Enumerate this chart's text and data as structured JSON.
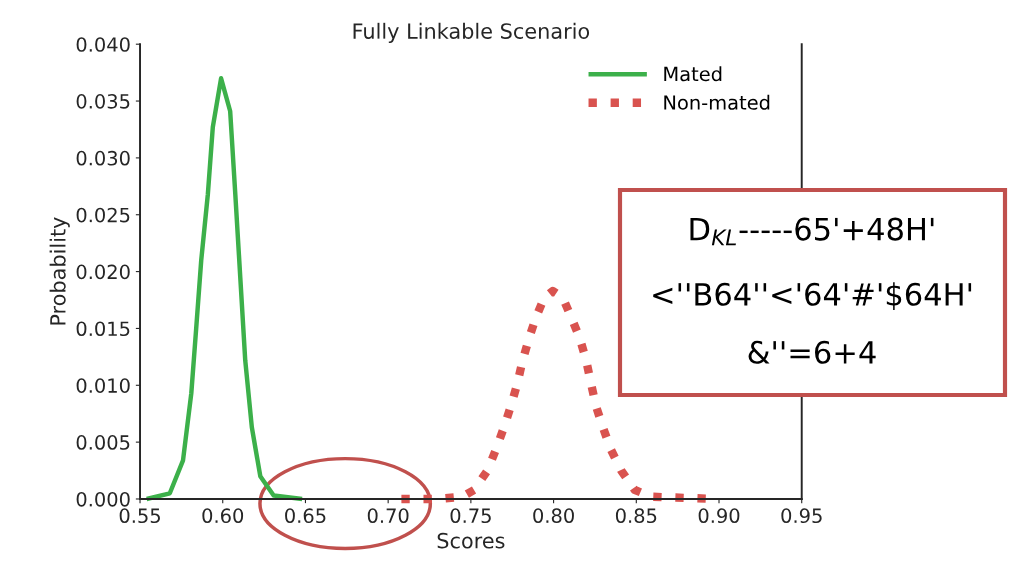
{
  "chart_data": {
    "type": "line",
    "title": "Fully Linkable Scenario",
    "xlabel": "Scores",
    "ylabel": "Probability",
    "xlim": [
      0.55,
      0.95
    ],
    "xticks": [
      {
        "value": 0.55,
        "label": "0.55"
      },
      {
        "value": 0.6,
        "label": "0.60"
      },
      {
        "value": 0.65,
        "label": "0.65"
      },
      {
        "value": 0.7,
        "label": "0.70"
      },
      {
        "value": 0.75,
        "label": "0.75"
      },
      {
        "value": 0.8,
        "label": "0.80"
      },
      {
        "value": 0.85,
        "label": "0.85"
      },
      {
        "value": 0.9,
        "label": "0.90"
      },
      {
        "value": 0.95,
        "label": "0.95"
      }
    ],
    "ylim": [
      0,
      0.04
    ],
    "yticks": [
      {
        "value": 0,
        "label": "0.000"
      },
      {
        "value": 0.005,
        "label": "0.005"
      },
      {
        "value": 0.01,
        "label": "0.010"
      },
      {
        "value": 0.015,
        "label": "0.015"
      },
      {
        "value": 0.02,
        "label": "0.020"
      },
      {
        "value": 0.025,
        "label": "0.025"
      },
      {
        "value": 0.03,
        "label": "0.030"
      },
      {
        "value": 0.035,
        "label": "0.035"
      },
      {
        "value": 0.04,
        "label": "0.040"
      }
    ],
    "grid": false,
    "legend": "top right",
    "marker": "none",
    "series": [
      {
        "name": "Mated",
        "color": "#3cb04a",
        "line_style": "solid",
        "x": [
          0.554,
          0.568,
          0.576,
          0.581,
          0.584,
          0.587,
          0.591,
          0.594,
          0.599,
          0.6045,
          0.6076,
          0.6106,
          0.6136,
          0.6176,
          0.6227,
          0.6308,
          0.648
        ],
        "values": [
          0,
          0.0005,
          0.0034,
          0.0093,
          0.0151,
          0.021,
          0.0268,
          0.0327,
          0.037,
          0.0341,
          0.0268,
          0.0195,
          0.0122,
          0.0063,
          0.002,
          0.0003,
          0
        ]
      },
      {
        "name": "Non-mated",
        "color": "#d9534f",
        "line_style": "dotted",
        "x": [
          0.708,
          0.73,
          0.745,
          0.752,
          0.76,
          0.765,
          0.77,
          0.774,
          0.778,
          0.7813,
          0.7853,
          0.7894,
          0.7944,
          0.7995,
          0.8056,
          0.8106,
          0.8157,
          0.8197,
          0.8227,
          0.8258,
          0.8298,
          0.8348,
          0.8409,
          0.849,
          0.859,
          0.8995
        ],
        "values": [
          0,
          0,
          0.0002,
          0.0008,
          0.0025,
          0.0043,
          0.0063,
          0.0081,
          0.0101,
          0.0122,
          0.0142,
          0.016,
          0.0177,
          0.0183,
          0.0177,
          0.016,
          0.0142,
          0.0122,
          0.0101,
          0.0081,
          0.0063,
          0.0043,
          0.0025,
          0.0008,
          0.0002,
          0
        ]
      }
    ],
    "annotations": [
      "D$_{KL}$-----65'+48H'",
      "<''B64''<'64'#'$64H'",
      "&''=6+4"
    ]
  }
}
